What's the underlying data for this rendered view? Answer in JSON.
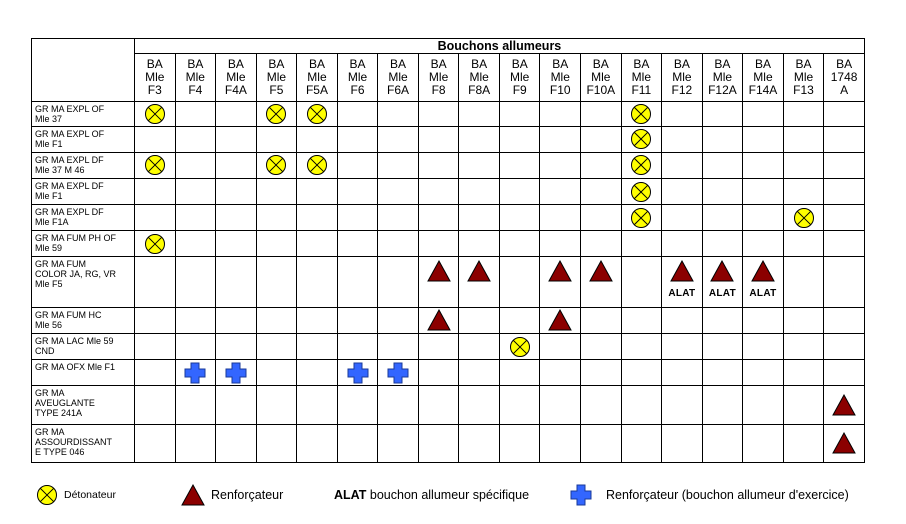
{
  "table": {
    "group_header": "Bouchons allumeurs",
    "columns": [
      [
        "BA",
        "Mle",
        "F3"
      ],
      [
        "BA",
        "Mle",
        "F4"
      ],
      [
        "BA",
        "Mle",
        "F4A"
      ],
      [
        "BA",
        "Mle",
        "F5"
      ],
      [
        "BA",
        "Mle",
        "F5A"
      ],
      [
        "BA",
        "Mle",
        "F6"
      ],
      [
        "BA",
        "Mle",
        "F6A"
      ],
      [
        "BA",
        "Mle",
        "F8"
      ],
      [
        "BA",
        "Mle",
        "F8A"
      ],
      [
        "BA",
        "Mle",
        "F9"
      ],
      [
        "BA",
        "Mle",
        "F10"
      ],
      [
        "BA",
        "Mle",
        "F10A"
      ],
      [
        "BA",
        "Mle",
        "F11"
      ],
      [
        "BA",
        "Mle",
        "F12"
      ],
      [
        "BA",
        "Mle",
        "F12A"
      ],
      [
        "BA",
        "Mle",
        "F14A"
      ],
      [
        "BA",
        "Mle",
        "F13"
      ],
      [
        "BA",
        "1748",
        "A"
      ]
    ],
    "rows": [
      {
        "label": [
          "GR MA EXPL OF",
          "Mle 37"
        ],
        "cells": [
          "D",
          "",
          "",
          "D",
          "D",
          "",
          "",
          "",
          "",
          "",
          "",
          "",
          "D",
          "",
          "",
          "",
          "",
          ""
        ]
      },
      {
        "label": [
          "GR MA EXPL OF",
          "Mle F1"
        ],
        "cells": [
          "",
          "",
          "",
          "",
          "",
          "",
          "",
          "",
          "",
          "",
          "",
          "",
          "D",
          "",
          "",
          "",
          "",
          ""
        ]
      },
      {
        "label": [
          "GR MA EXPL DF",
          "Mle 37 M 46"
        ],
        "cells": [
          "D",
          "",
          "",
          "D",
          "D",
          "",
          "",
          "",
          "",
          "",
          "",
          "",
          "D",
          "",
          "",
          "",
          "",
          ""
        ]
      },
      {
        "label": [
          "GR MA EXPL DF",
          "Mle F1"
        ],
        "cells": [
          "",
          "",
          "",
          "",
          "",
          "",
          "",
          "",
          "",
          "",
          "",
          "",
          "D",
          "",
          "",
          "",
          "",
          ""
        ]
      },
      {
        "label": [
          "GR MA EXPL DF",
          "Mle F1A"
        ],
        "cells": [
          "",
          "",
          "",
          "",
          "",
          "",
          "",
          "",
          "",
          "",
          "",
          "",
          "D",
          "",
          "",
          "",
          "D",
          ""
        ]
      },
      {
        "label": [
          "GR MA FUM PH OF",
          "Mle 59"
        ],
        "cells": [
          "D",
          "",
          "",
          "",
          "",
          "",
          "",
          "",
          "",
          "",
          "",
          "",
          "",
          "",
          "",
          "",
          "",
          ""
        ]
      },
      {
        "label": [
          "GR MA FUM",
          "COLOR JA, RG, VR",
          "Mle F5"
        ],
        "cells": [
          "",
          "",
          "",
          "",
          "",
          "",
          "",
          "R",
          "R",
          "",
          "R",
          "R",
          "",
          "R",
          "R",
          "R",
          "",
          ""
        ],
        "notes": [
          "",
          "",
          "",
          "",
          "",
          "",
          "",
          "",
          "",
          "",
          "",
          "",
          "",
          "ALAT",
          "ALAT",
          "ALAT",
          "",
          ""
        ]
      },
      {
        "label": [
          "GR MA FUM HC",
          "Mle 56"
        ],
        "cells": [
          "",
          "",
          "",
          "",
          "",
          "",
          "",
          "R",
          "",
          "",
          "R",
          "",
          "",
          "",
          "",
          "",
          "",
          ""
        ]
      },
      {
        "label": [
          "GR MA LAC Mle 59",
          "CND"
        ],
        "cells": [
          "",
          "",
          "",
          "",
          "",
          "",
          "",
          "",
          "",
          "D",
          "",
          "",
          "",
          "",
          "",
          "",
          "",
          ""
        ]
      },
      {
        "label": [
          "GR MA OFX Mle F1"
        ],
        "cells": [
          "",
          "E",
          "E",
          "",
          "",
          "E",
          "E",
          "",
          "",
          "",
          "",
          "",
          "",
          "",
          "",
          "",
          "",
          ""
        ]
      },
      {
        "label": [
          "GR MA",
          "AVEUGLANTE",
          "TYPE 241A"
        ],
        "cells": [
          "",
          "",
          "",
          "",
          "",
          "",
          "",
          "",
          "",
          "",
          "",
          "",
          "",
          "",
          "",
          "",
          "",
          "R"
        ]
      },
      {
        "label": [
          "GR MA",
          "ASSOURDISSANT",
          "E TYPE 046"
        ],
        "cells": [
          "",
          "",
          "",
          "",
          "",
          "",
          "",
          "",
          "",
          "",
          "",
          "",
          "",
          "",
          "",
          "",
          "",
          "R"
        ]
      }
    ]
  },
  "legend": {
    "detonateur": "Détonateur",
    "renforcateur": "Renforçateur",
    "alat_bold": "ALAT",
    "alat_text": "bouchon allumeur spécifique",
    "exercice": "Renforçateur (bouchon allumeur d'exercice)"
  },
  "icons": {
    "D": "detonateur-icon",
    "R": "renforcateur-icon",
    "E": "renforcateur-exercice-icon"
  },
  "colors": {
    "detonateur_fill": "#ffff00",
    "renforcateur_fill": "#8b0000",
    "exercice_fill": "#3366ff"
  }
}
